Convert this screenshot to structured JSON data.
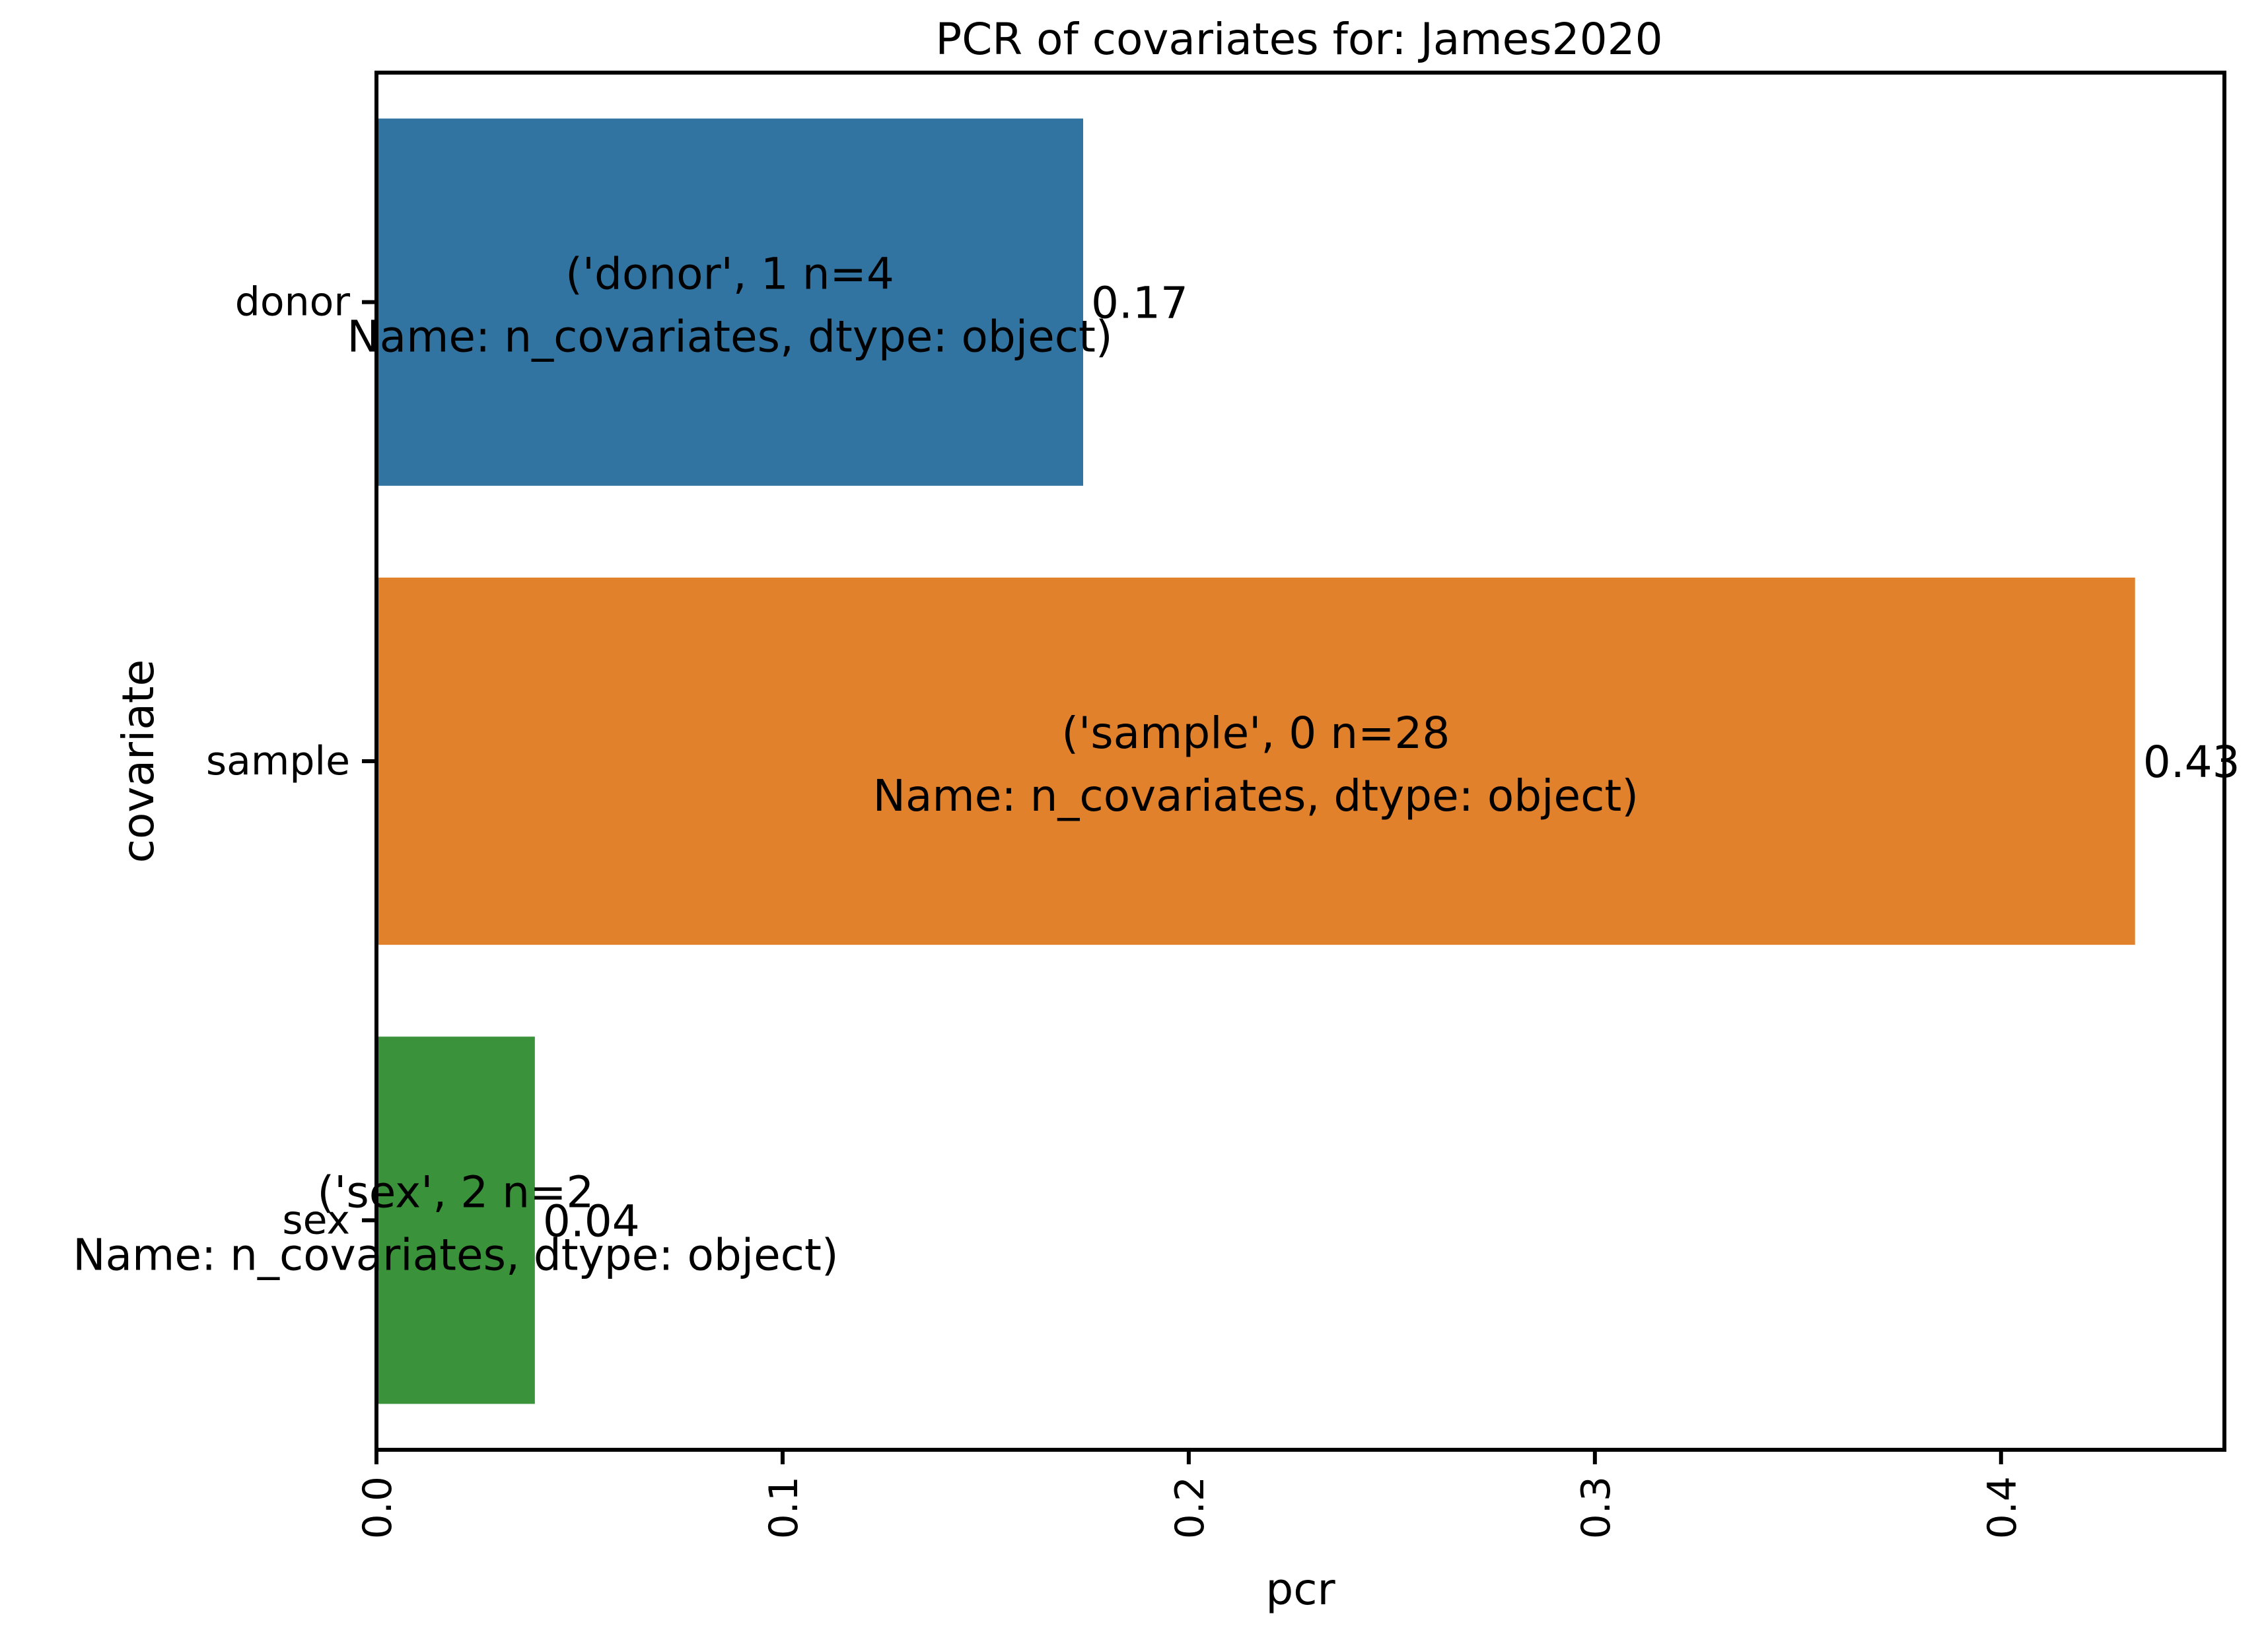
{
  "chart_data": {
    "type": "bar",
    "orientation": "horizontal",
    "title": "PCR of covariates for: James2020",
    "xlabel": "pcr",
    "ylabel": "covariate",
    "categories": [
      "donor",
      "sample",
      "sex"
    ],
    "values": [
      0.174,
      0.433,
      0.039
    ],
    "value_labels": [
      "0.17",
      "0.43",
      "0.04"
    ],
    "annotations": [
      [
        "('donor', 1    n=4",
        "Name: n_covariates, dtype: object)"
      ],
      [
        "('sample', 0    n=28",
        "Name: n_covariates, dtype: object)"
      ],
      [
        "('sex', 2    n=2",
        "Name: n_covariates, dtype: object)"
      ]
    ],
    "colors": [
      "#3274a1",
      "#e1812c",
      "#3a923a"
    ],
    "xlim": [
      0,
      0.455
    ],
    "xticks": [
      0.0,
      0.1,
      0.2,
      0.3,
      0.4
    ],
    "xtick_labels": [
      "0.0",
      "0.1",
      "0.2",
      "0.3",
      "0.4"
    ],
    "tick_label_rotation": "vertical",
    "grid": false,
    "legend": "none"
  }
}
